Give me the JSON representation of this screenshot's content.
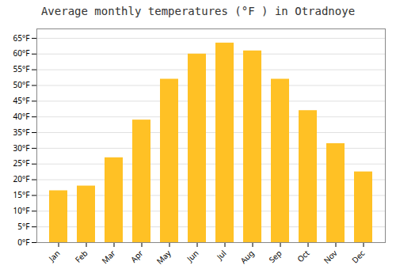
{
  "chart_data": {
    "type": "bar",
    "title": "Average monthly temperatures (°F ) in Otradnoye",
    "categories": [
      "Jan",
      "Feb",
      "Mar",
      "Apr",
      "May",
      "Jun",
      "Jul",
      "Aug",
      "Sep",
      "Oct",
      "Nov",
      "Dec"
    ],
    "values": [
      16.5,
      18.0,
      27.0,
      39.0,
      52.0,
      60.0,
      63.5,
      61.0,
      52.0,
      42.0,
      31.5,
      22.5
    ],
    "color": "#FFC125",
    "ylim": [
      0,
      68
    ],
    "yticks": [
      {
        "value": 0,
        "label": "0°F"
      },
      {
        "value": 5,
        "label": "5°F"
      },
      {
        "value": 10,
        "label": "10°F"
      },
      {
        "value": 15,
        "label": "15°F"
      },
      {
        "value": 20,
        "label": "20°F"
      },
      {
        "value": 25,
        "label": "25°F"
      },
      {
        "value": 30,
        "label": "30°F"
      },
      {
        "value": 35,
        "label": "35°F"
      },
      {
        "value": 40,
        "label": "40°F"
      },
      {
        "value": 45,
        "label": "45°F"
      },
      {
        "value": 50,
        "label": "50°F"
      },
      {
        "value": 55,
        "label": "55°F"
      },
      {
        "value": 60,
        "label": "60°F"
      },
      {
        "value": 65,
        "label": "65°F"
      }
    ],
    "grid": true
  }
}
